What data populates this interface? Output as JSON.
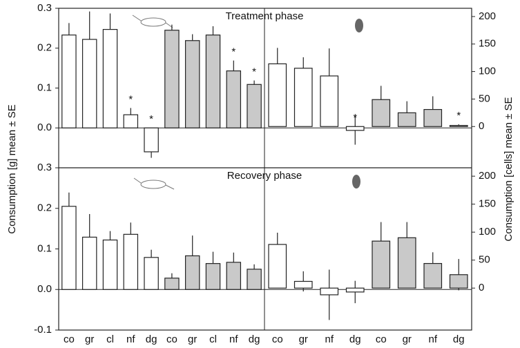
{
  "chart_data": {
    "type": "bar",
    "ylabel": "Consumption [g] mean ± SE",
    "y2label": "Consumption [cells] mean ± SE",
    "groups": [
      {
        "axis": "y",
        "categories": [
          "co",
          "gr",
          "cl",
          "nf",
          "dg",
          "co",
          "gr",
          "cl",
          "nf",
          "dg"
        ],
        "colors": [
          "#ffffff",
          "#ffffff",
          "#ffffff",
          "#ffffff",
          "#ffffff",
          "#c9c9c9",
          "#c9c9c9",
          "#c9c9c9",
          "#c9c9c9",
          "#c9c9c9"
        ]
      },
      {
        "axis": "y2",
        "categories": [
          "co",
          "gr",
          "nf",
          "dg",
          "co",
          "gr",
          "nf",
          "dg"
        ],
        "colors": [
          "#ffffff",
          "#ffffff",
          "#ffffff",
          "#ffffff",
          "#c9c9c9",
          "#c9c9c9",
          "#c9c9c9",
          "#c9c9c9"
        ]
      }
    ],
    "panels": [
      {
        "title": "Treatment phase",
        "ylim": [
          -0.1,
          0.3
        ],
        "yticks": [
          {
            "value": 0,
            "label": "0.0"
          },
          0.1,
          0.2,
          0.3
        ],
        "y2lim": [
          -75,
          215
        ],
        "y2ticks": [
          0,
          50,
          100,
          150,
          200
        ],
        "groups": [
          {
            "values": [
              0.233,
              0.222,
              0.247,
              0.033,
              -0.06,
              0.245,
              0.219,
              0.233,
              0.143,
              0.109
            ],
            "errors": [
              0.03,
              0.07,
              0.04,
              0.017,
              0.015,
              0.014,
              0.016,
              0.022,
              0.026,
              0.01
            ],
            "annotations": [
              null,
              null,
              null,
              "*",
              "*",
              null,
              null,
              null,
              "*",
              "*"
            ]
          },
          {
            "values": [
              114,
              106,
              92,
              -7,
              49,
              25,
              31,
              2
            ],
            "errors": [
              29,
              20,
              50,
              26,
              25,
              21,
              24,
              2
            ],
            "annotations": [
              null,
              null,
              null,
              "*",
              null,
              null,
              null,
              "*"
            ]
          }
        ]
      },
      {
        "title": "Recovery phase",
        "ylim": [
          -0.1,
          0.3
        ],
        "yticks": [
          -0.1,
          {
            "value": 0,
            "label": "0.0"
          },
          0.1,
          0.2,
          0.3
        ],
        "y2lim": [
          -75,
          215
        ],
        "y2ticks": [
          0,
          50,
          100,
          150,
          200
        ],
        "groups": [
          {
            "values": [
              0.205,
              0.129,
              0.122,
              0.136,
              0.079,
              0.028,
              0.083,
              0.064,
              0.067,
              0.05
            ],
            "errors": [
              0.034,
              0.057,
              0.022,
              0.029,
              0.019,
              0.012,
              0.05,
              0.029,
              0.024,
              0.012
            ]
          },
          {
            "values": [
              78,
              12,
              -12,
              -7,
              84,
              90,
              44,
              24
            ],
            "errors": [
              21,
              18,
              45,
              20,
              34,
              28,
              20,
              28
            ]
          }
        ]
      }
    ]
  }
}
